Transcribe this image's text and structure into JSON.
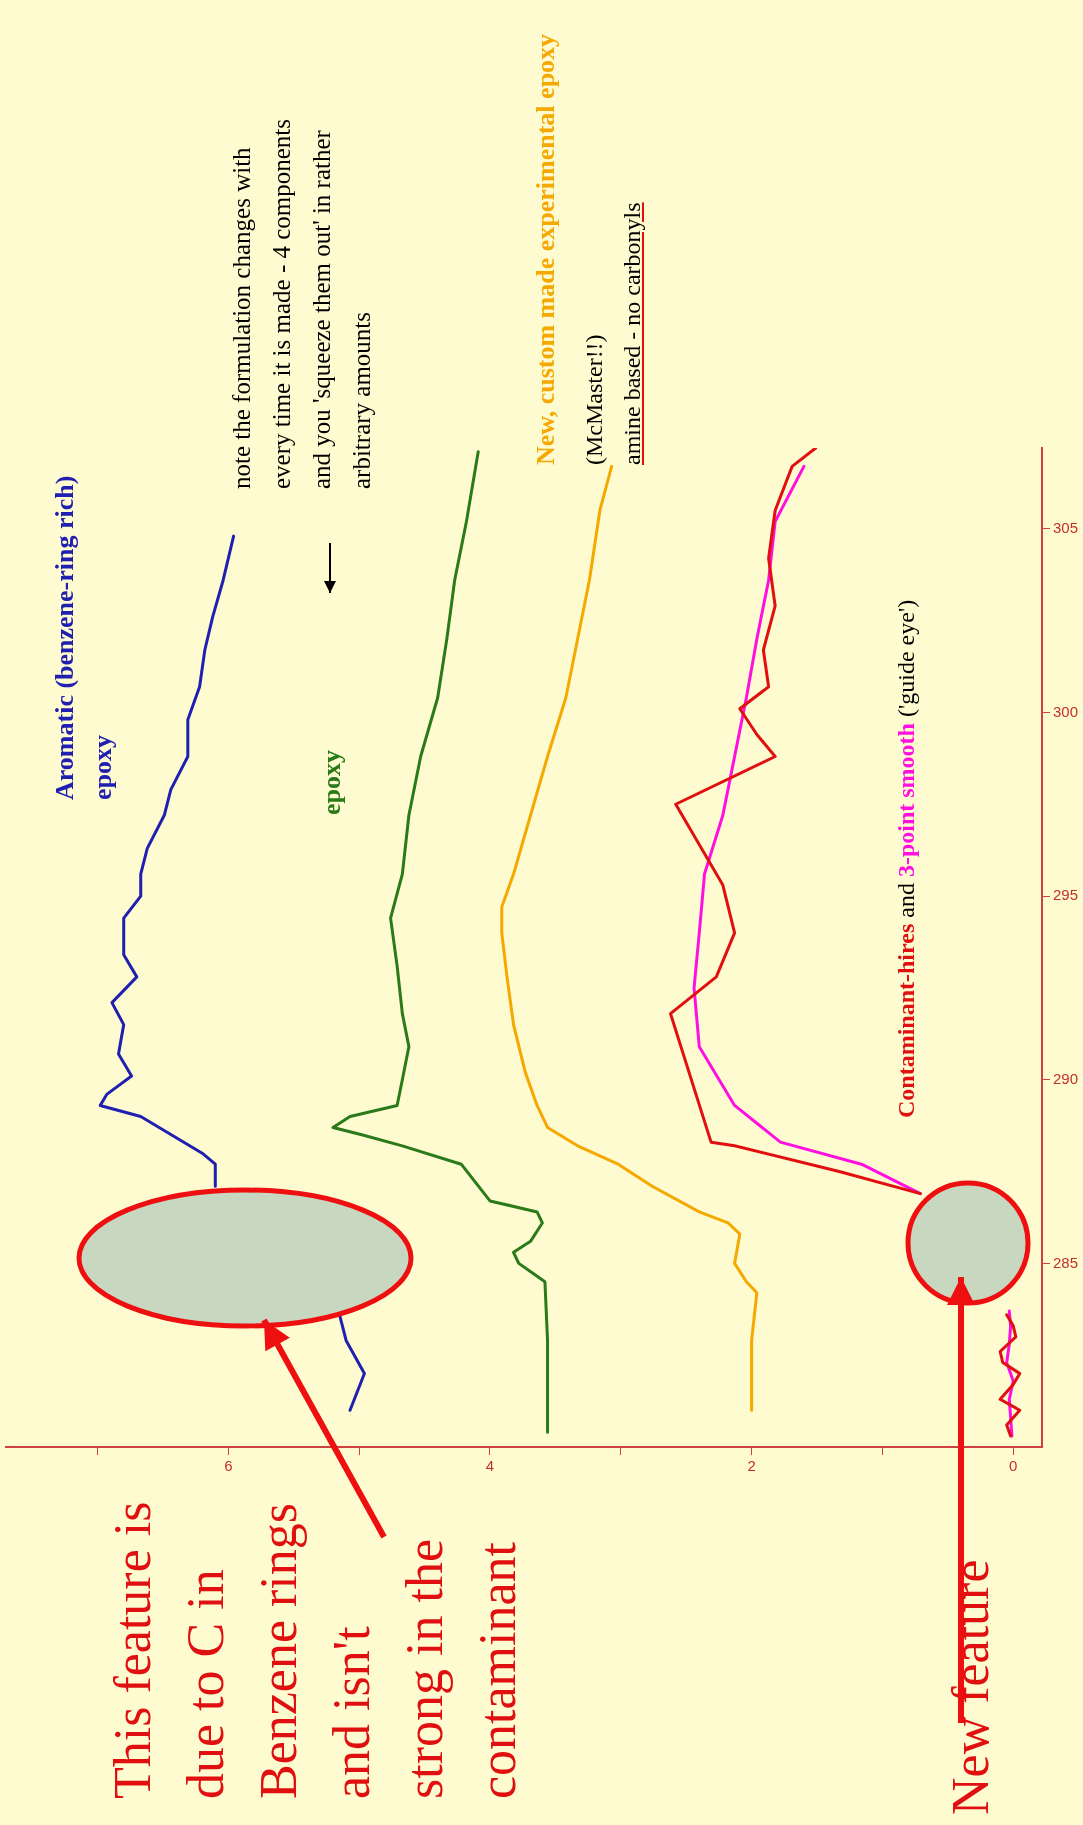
{
  "chart_data": {
    "type": "line",
    "xlim": [
      7.7,
      -0.22
    ],
    "ylim": [
      280,
      307.2
    ],
    "xticks": [
      0,
      {
        "value": 1,
        "label": null
      },
      2,
      {
        "value": 3,
        "label": null
      },
      4,
      {
        "value": 5,
        "label": null
      },
      6,
      {
        "value": 7,
        "label": null
      }
    ],
    "yticks": [
      285,
      290,
      295,
      300,
      305
    ],
    "grid": false,
    "legend": false,
    "marker": "none",
    "line_style": "solid",
    "series": [
      {
        "name": "Aromatic (benzene-ring rich) epoxy",
        "color": "#2020b0",
        "x": [
          5.07,
          4.96,
          5.1,
          5.15,
          null,
          6.1,
          6.1,
          6.2,
          6.67,
          6.98,
          6.93,
          6.74,
          6.84,
          6.8,
          6.89,
          6.7,
          6.8,
          6.8,
          6.67,
          6.67,
          6.62,
          6.49,
          6.44,
          6.31,
          6.31,
          6.22,
          6.18,
          6.12,
          6.04,
          5.96
        ],
        "values": [
          281,
          282,
          282.9,
          283.6,
          null,
          287.1,
          287.7,
          288,
          289,
          289.3,
          289.6,
          290.1,
          290.7,
          291.5,
          292.1,
          292.8,
          293.4,
          294.4,
          295,
          295.6,
          296.3,
          297.2,
          297.9,
          298.8,
          299.8,
          300.7,
          301.7,
          302.6,
          303.6,
          304.8
        ]
      },
      {
        "name": "epoxy",
        "color": "#2a7a1a",
        "x": [
          3.56,
          3.56,
          3.58,
          3.78,
          3.82,
          3.69,
          3.6,
          3.64,
          4.0,
          4.22,
          4.67,
          4.98,
          5.2,
          5.07,
          4.71,
          4.67,
          4.62,
          4.67,
          4.71,
          4.76,
          4.67,
          4.62,
          4.53,
          4.4,
          4.33,
          4.27,
          4.18,
          4.09
        ],
        "values": [
          280.4,
          282.9,
          284.5,
          285,
          285.3,
          285.6,
          286.1,
          286.4,
          286.7,
          287.7,
          288.2,
          288.5,
          288.7,
          289,
          289.3,
          290,
          290.9,
          291.8,
          293.1,
          294.4,
          295.6,
          297.2,
          298.8,
          300.4,
          302,
          303.6,
          305.2,
          307.1
        ]
      },
      {
        "name": "New, custom made experimental epoxy",
        "color": "#f5a800",
        "x": [
          2.0,
          2.0,
          1.96,
          2.04,
          2.13,
          2.09,
          2.18,
          2.4,
          2.76,
          3.02,
          3.33,
          3.56,
          3.64,
          3.73,
          3.82,
          3.87,
          3.91,
          3.91,
          3.82,
          3.69,
          3.56,
          3.42,
          3.33,
          3.24,
          3.16,
          3.07
        ],
        "values": [
          281,
          282.9,
          284.2,
          284.5,
          285,
          285.8,
          286.1,
          286.4,
          287.1,
          287.7,
          288.2,
          288.7,
          289.3,
          290.2,
          291.5,
          292.8,
          294,
          294.7,
          295.6,
          297.2,
          298.8,
          300.4,
          302,
          303.6,
          305.5,
          306.7
        ]
      },
      {
        "name": "Contaminant-hires",
        "color": "#e01010",
        "x": [
          0.02,
          0.05,
          -0.05,
          0.1,
          0.0,
          -0.05,
          0.08,
          0.1,
          -0.02,
          0.0,
          0.05,
          null,
          0.71,
          1.33,
          2.13,
          2.31,
          2.62,
          2.27,
          2.13,
          2.22,
          2.58,
          1.82,
          1.96,
          2.09,
          1.87,
          1.91,
          1.82,
          1.87,
          1.82,
          1.69,
          1.51
        ],
        "values": [
          280.3,
          280.6,
          281,
          281.3,
          281.7,
          282,
          282.3,
          282.6,
          283,
          283.3,
          283.6,
          null,
          286.9,
          287.5,
          288.2,
          288.3,
          291.8,
          292.8,
          294,
          295.3,
          297.5,
          298.8,
          299.4,
          300.1,
          300.7,
          301.7,
          302.9,
          304.2,
          305.5,
          306.7,
          307.2
        ]
      },
      {
        "name": "3-point smooth",
        "color": "#ff10e0",
        "x": [
          0.01,
          0.02,
          0.03,
          0.0,
          0.05,
          0.03,
          0.02,
          0.03,
          null,
          0.71,
          1.16,
          1.78,
          2.13,
          2.4,
          2.44,
          2.4,
          2.36,
          2.22,
          2.13,
          2.04,
          1.96,
          1.87,
          1.82,
          1.6
        ],
        "values": [
          280.3,
          280.8,
          281.3,
          281.8,
          282.3,
          282.8,
          283.3,
          283.7,
          null,
          286.9,
          287.7,
          288.3,
          289.3,
          290.9,
          292.5,
          294,
          295.6,
          297.2,
          298.8,
          300.4,
          302,
          303.6,
          305.2,
          306.7
        ]
      }
    ],
    "annotations": [
      "(McMaster!!)",
      "amine based - no carbonyls",
      "note the formulation changes with every time it is made - 4 components and you 'squeeze them out' in rather arbitrary amounts",
      "and",
      "('guide eye')",
      "This feature is\ndue to C in\nBenzene rings\nand isn't\nstrong in the\ncontaminant",
      "New feature"
    ]
  }
}
